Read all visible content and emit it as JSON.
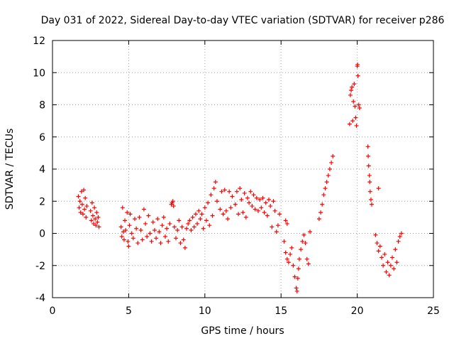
{
  "chart_data": {
    "type": "scatter",
    "title": "Day 031 of 2022, Sidereal Day-to-day VTEC variation (SDTVAR) for receiver p286",
    "xlabel": "GPS time / hours",
    "ylabel": "SDTVAR / TECUs",
    "xlim": [
      0,
      25
    ],
    "ylim": [
      -4,
      12
    ],
    "xticks": [
      "0",
      "5",
      "10",
      "15",
      "20",
      "25"
    ],
    "yticks": [
      "-4",
      "-2",
      "0",
      "2",
      "4",
      "6",
      "8",
      "10",
      "12"
    ],
    "grid": true,
    "marker": "plus",
    "color": "#ff0000",
    "series": [
      {
        "name": "SDTVAR",
        "points": [
          [
            1.7,
            2.3
          ],
          [
            1.75,
            1.6
          ],
          [
            1.8,
            2.0
          ],
          [
            1.85,
            1.3
          ],
          [
            1.9,
            2.6
          ],
          [
            1.95,
            1.8
          ],
          [
            2.0,
            1.2
          ],
          [
            2.05,
            2.7
          ],
          [
            2.1,
            1.5
          ],
          [
            2.15,
            2.2
          ],
          [
            2.2,
            1.0
          ],
          [
            2.25,
            1.7
          ],
          [
            2.5,
            1.4
          ],
          [
            2.55,
            0.8
          ],
          [
            2.6,
            1.9
          ],
          [
            2.65,
            1.1
          ],
          [
            2.7,
            0.6
          ],
          [
            2.75,
            1.6
          ],
          [
            2.8,
            0.9
          ],
          [
            2.85,
            0.5
          ],
          [
            2.9,
            1.3
          ],
          [
            2.95,
            0.7
          ],
          [
            3.0,
            1.0
          ],
          [
            3.05,
            0.4
          ],
          [
            4.5,
            0.4
          ],
          [
            4.55,
            -0.2
          ],
          [
            4.6,
            1.6
          ],
          [
            4.65,
            0.1
          ],
          [
            4.7,
            -0.4
          ],
          [
            4.75,
            0.8
          ],
          [
            4.8,
            0.2
          ],
          [
            4.9,
            1.3
          ],
          [
            4.95,
            -0.5
          ],
          [
            5.0,
            -0.8
          ],
          [
            5.05,
            0.5
          ],
          [
            5.1,
            1.2
          ],
          [
            5.2,
            0.0
          ],
          [
            5.3,
            -0.3
          ],
          [
            5.4,
            0.9
          ],
          [
            5.5,
            0.3
          ],
          [
            5.6,
            -0.6
          ],
          [
            5.7,
            1.0
          ],
          [
            5.8,
            0.2
          ],
          [
            5.9,
            -0.4
          ],
          [
            6.0,
            1.5
          ],
          [
            6.1,
            0.6
          ],
          [
            6.2,
            -0.2
          ],
          [
            6.3,
            1.1
          ],
          [
            6.4,
            0.0
          ],
          [
            6.5,
            -0.5
          ],
          [
            6.6,
            0.7
          ],
          [
            6.7,
            0.2
          ],
          [
            6.8,
            -0.3
          ],
          [
            6.9,
            0.9
          ],
          [
            7.0,
            0.1
          ],
          [
            7.1,
            -0.6
          ],
          [
            7.2,
            0.5
          ],
          [
            7.3,
            1.0
          ],
          [
            7.4,
            -0.2
          ],
          [
            7.5,
            0.3
          ],
          [
            7.6,
            -0.5
          ],
          [
            7.7,
            0.6
          ],
          [
            7.8,
            1.8
          ],
          [
            7.85,
            1.9
          ],
          [
            7.9,
            2.0
          ],
          [
            7.95,
            1.7
          ],
          [
            8.0,
            0.4
          ],
          [
            8.1,
            -0.3
          ],
          [
            8.2,
            0.2
          ],
          [
            8.3,
            0.8
          ],
          [
            8.4,
            -0.6
          ],
          [
            8.5,
            0.4
          ],
          [
            8.6,
            -0.4
          ],
          [
            8.7,
            -0.9
          ],
          [
            8.8,
            0.3
          ],
          [
            8.9,
            0.6
          ],
          [
            9.0,
            0.8
          ],
          [
            9.1,
            0.2
          ],
          [
            9.2,
            1.0
          ],
          [
            9.3,
            0.4
          ],
          [
            9.4,
            1.2
          ],
          [
            9.5,
            0.6
          ],
          [
            9.6,
            1.4
          ],
          [
            9.7,
            0.9
          ],
          [
            9.8,
            1.2
          ],
          [
            9.9,
            0.3
          ],
          [
            10.0,
            1.6
          ],
          [
            10.1,
            0.8
          ],
          [
            10.2,
            1.9
          ],
          [
            10.3,
            0.5
          ],
          [
            10.4,
            2.4
          ],
          [
            10.5,
            1.1
          ],
          [
            10.6,
            2.8
          ],
          [
            10.7,
            3.2
          ],
          [
            10.8,
            2.0
          ],
          [
            11.0,
            1.5
          ],
          [
            11.1,
            2.6
          ],
          [
            11.2,
            1.2
          ],
          [
            11.3,
            2.7
          ],
          [
            11.4,
            1.4
          ],
          [
            11.5,
            0.9
          ],
          [
            11.6,
            2.6
          ],
          [
            11.7,
            1.6
          ],
          [
            11.8,
            2.3
          ],
          [
            12.0,
            1.8
          ],
          [
            12.1,
            2.6
          ],
          [
            12.2,
            1.2
          ],
          [
            12.3,
            2.8
          ],
          [
            12.4,
            2.1
          ],
          [
            12.5,
            1.3
          ],
          [
            12.6,
            2.5
          ],
          [
            12.7,
            1.0
          ],
          [
            12.8,
            2.2
          ],
          [
            12.9,
            1.9
          ],
          [
            13.0,
            2.6
          ],
          [
            13.1,
            1.7
          ],
          [
            13.2,
            2.4
          ],
          [
            13.3,
            1.5
          ],
          [
            13.4,
            2.2
          ],
          [
            13.5,
            1.4
          ],
          [
            13.6,
            2.1
          ],
          [
            13.7,
            1.6
          ],
          [
            13.8,
            2.2
          ],
          [
            13.9,
            1.3
          ],
          [
            14.0,
            1.9
          ],
          [
            14.1,
            1.1
          ],
          [
            14.2,
            2.1
          ],
          [
            14.3,
            1.7
          ],
          [
            14.4,
            0.4
          ],
          [
            14.5,
            2.0
          ],
          [
            14.6,
            1.4
          ],
          [
            14.7,
            0.1
          ],
          [
            14.8,
            0.5
          ],
          [
            14.9,
            1.2
          ],
          [
            15.3,
            0.8
          ],
          [
            15.4,
            0.6
          ],
          [
            15.2,
            -0.5
          ],
          [
            15.3,
            -1.2
          ],
          [
            15.4,
            -1.6
          ],
          [
            15.5,
            -1.8
          ],
          [
            15.6,
            -1.3
          ],
          [
            15.7,
            -0.9
          ],
          [
            15.8,
            -2.0
          ],
          [
            15.9,
            -2.7
          ],
          [
            16.0,
            -3.4
          ],
          [
            16.05,
            -3.6
          ],
          [
            16.1,
            -2.8
          ],
          [
            16.15,
            -2.2
          ],
          [
            16.2,
            -1.6
          ],
          [
            16.3,
            -1.0
          ],
          [
            16.4,
            -0.5
          ],
          [
            16.5,
            -0.1
          ],
          [
            16.6,
            -0.6
          ],
          [
            16.7,
            -1.6
          ],
          [
            16.8,
            -1.9
          ],
          [
            16.9,
            0.1
          ],
          [
            17.5,
            0.9
          ],
          [
            17.6,
            1.3
          ],
          [
            17.7,
            1.8
          ],
          [
            17.8,
            2.4
          ],
          [
            17.9,
            2.8
          ],
          [
            18.0,
            3.2
          ],
          [
            18.1,
            3.6
          ],
          [
            18.2,
            4.0
          ],
          [
            18.3,
            4.4
          ],
          [
            18.4,
            4.8
          ],
          [
            19.5,
            6.8
          ],
          [
            19.55,
            8.6
          ],
          [
            19.6,
            8.9
          ],
          [
            19.65,
            9.1
          ],
          [
            19.7,
            7.0
          ],
          [
            19.75,
            8.2
          ],
          [
            19.8,
            9.3
          ],
          [
            19.85,
            7.9
          ],
          [
            19.9,
            7.2
          ],
          [
            19.95,
            6.7
          ],
          [
            20.0,
            10.4
          ],
          [
            20.02,
            10.5
          ],
          [
            20.05,
            9.8
          ],
          [
            20.1,
            8.0
          ],
          [
            20.15,
            7.8
          ],
          [
            20.7,
            5.4
          ],
          [
            20.72,
            4.8
          ],
          [
            20.75,
            4.2
          ],
          [
            20.8,
            3.6
          ],
          [
            20.82,
            3.2
          ],
          [
            20.85,
            2.6
          ],
          [
            20.9,
            2.1
          ],
          [
            20.95,
            1.8
          ],
          [
            21.4,
            2.8
          ],
          [
            21.2,
            -0.1
          ],
          [
            21.3,
            -0.6
          ],
          [
            21.4,
            -1.1
          ],
          [
            21.5,
            -0.8
          ],
          [
            21.6,
            -1.5
          ],
          [
            21.7,
            -2.0
          ],
          [
            21.8,
            -1.3
          ],
          [
            21.9,
            -2.4
          ],
          [
            22.0,
            -1.8
          ],
          [
            22.1,
            -2.6
          ],
          [
            22.2,
            -2.0
          ],
          [
            22.3,
            -1.5
          ],
          [
            22.4,
            -2.2
          ],
          [
            22.5,
            -1.0
          ],
          [
            22.6,
            -1.8
          ],
          [
            22.7,
            -0.5
          ],
          [
            22.8,
            -0.2
          ],
          [
            22.9,
            0.0
          ]
        ]
      }
    ]
  }
}
